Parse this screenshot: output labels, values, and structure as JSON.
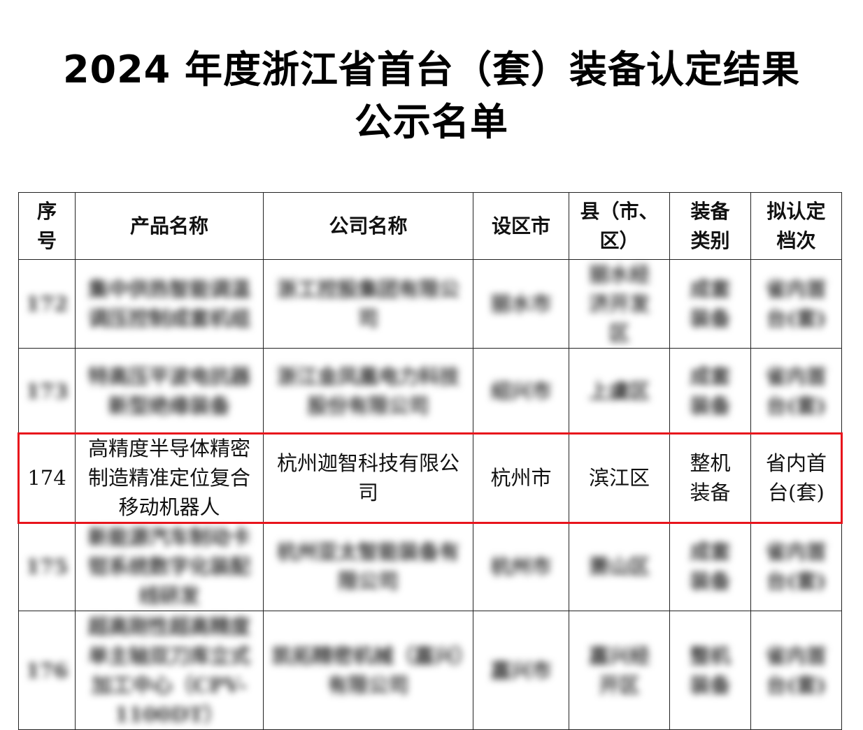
{
  "title_line1": "2024 年度浙江省首台（套）装备认定结果",
  "title_line2": "公示名单",
  "headers": [
    "序号",
    "产品名称",
    "公司名称",
    "设区市",
    "县（市、区）",
    "装备类别",
    "拟认定档次"
  ],
  "rows": [
    {
      "seq": "172",
      "product": "集中供热智能调温调压控制成套机组",
      "company": "浙工控股集团有限公司",
      "city": "丽水市",
      "county": "丽水经济开发区",
      "category": "成套装备",
      "level": "省内首台(套)",
      "blurred": true
    },
    {
      "seq": "173",
      "product": "特高压平波电抗器新型绝缘装备",
      "company": "浙江金凤凰电力科技股份有限公司",
      "city": "绍兴市",
      "county": "上虞区",
      "category": "成套装备",
      "level": "省内首台(套)",
      "blurred": true
    },
    {
      "seq": "174",
      "product": "高精度半导体精密制造精准定位复合移动机器人",
      "company": "杭州迦智科技有限公司",
      "city": "杭州市",
      "county": "滨江区",
      "category": "整机装备",
      "level": "省内首台(套)",
      "blurred": false
    },
    {
      "seq": "175",
      "product": "新能源汽车制动卡钳系统数字化装配线研发",
      "company": "杭州亚太智能装备有限公司",
      "city": "杭州市",
      "county": "萧山区",
      "category": "成套装备",
      "level": "省内首台(套)",
      "blurred": true
    },
    {
      "seq": "176",
      "product": "超高刚性超高精度单主轴双刀库立式加工中心（CPV-1100DT）",
      "company": "凯拓精密机械（嘉兴）有限公司",
      "city": "嘉兴市",
      "county": "嘉兴经开区",
      "category": "整机装备",
      "level": "省内首台(套)",
      "blurred": true
    }
  ],
  "highlight_color": "#e8141c"
}
